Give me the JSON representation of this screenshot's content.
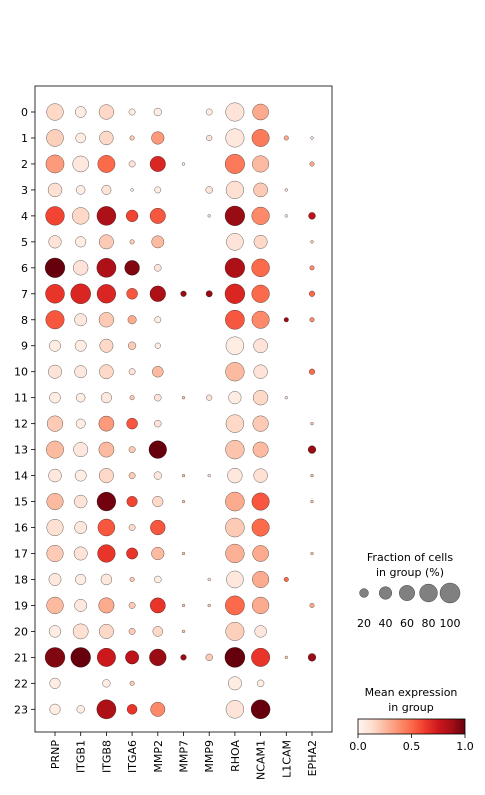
{
  "chart_data": {
    "type": "dotplot",
    "genes": [
      "PRNP",
      "ITGB1",
      "ITGB8",
      "ITGA6",
      "MMP2",
      "MMP7",
      "MMP9",
      "RHOA",
      "NCAM1",
      "L1CAM",
      "EPHA2"
    ],
    "groups": [
      "0",
      "1",
      "2",
      "3",
      "4",
      "5",
      "6",
      "7",
      "8",
      "9",
      "10",
      "11",
      "12",
      "13",
      "14",
      "15",
      "16",
      "17",
      "18",
      "19",
      "20",
      "21",
      "22",
      "23"
    ],
    "fraction": [
      [
        70,
        30,
        55,
        10,
        15,
        0,
        10,
        85,
        65,
        0,
        0
      ],
      [
        72,
        25,
        48,
        5,
        40,
        0,
        8,
        85,
        75,
        5,
        2
      ],
      [
        82,
        65,
        75,
        10,
        60,
        2,
        0,
        95,
        68,
        0,
        5
      ],
      [
        48,
        20,
        22,
        2,
        10,
        0,
        12,
        78,
        50,
        2,
        0
      ],
      [
        88,
        70,
        90,
        35,
        60,
        0,
        2,
        97,
        78,
        2,
        12
      ],
      [
        40,
        28,
        52,
        5,
        38,
        0,
        0,
        72,
        45,
        0,
        2
      ],
      [
        97,
        55,
        92,
        55,
        12,
        0,
        0,
        97,
        80,
        0,
        5
      ],
      [
        90,
        100,
        88,
        30,
        62,
        8,
        10,
        98,
        78,
        0,
        8
      ],
      [
        85,
        38,
        55,
        18,
        10,
        0,
        0,
        92,
        76,
        5,
        5
      ],
      [
        32,
        32,
        45,
        15,
        8,
        0,
        0,
        80,
        50,
        0,
        0
      ],
      [
        45,
        38,
        50,
        10,
        30,
        0,
        0,
        88,
        48,
        0,
        8
      ],
      [
        30,
        20,
        28,
        5,
        12,
        2,
        8,
        40,
        55,
        2,
        0
      ],
      [
        62,
        22,
        58,
        30,
        12,
        0,
        0,
        80,
        62,
        0,
        2
      ],
      [
        75,
        52,
        58,
        10,
        78,
        0,
        0,
        88,
        60,
        0,
        15
      ],
      [
        42,
        32,
        52,
        10,
        15,
        2,
        2,
        55,
        48,
        0,
        2
      ],
      [
        68,
        42,
        88,
        28,
        28,
        2,
        0,
        90,
        76,
        0,
        2
      ],
      [
        68,
        38,
        72,
        10,
        55,
        0,
        0,
        90,
        76,
        0,
        0
      ],
      [
        68,
        45,
        78,
        32,
        40,
        2,
        0,
        88,
        65,
        0,
        2
      ],
      [
        38,
        28,
        30,
        5,
        12,
        0,
        2,
        72,
        68,
        5,
        0
      ],
      [
        70,
        38,
        60,
        10,
        58,
        2,
        2,
        92,
        70,
        0,
        5
      ],
      [
        35,
        58,
        52,
        10,
        25,
        2,
        0,
        85,
        35,
        0,
        0
      ],
      [
        98,
        98,
        85,
        45,
        70,
        8,
        12,
        100,
        85,
        2,
        15
      ],
      [
        28,
        0,
        15,
        5,
        0,
        0,
        0,
        45,
        12,
        0,
        0
      ],
      [
        28,
        15,
        92,
        25,
        52,
        0,
        0,
        80,
        90,
        0,
        0
      ]
    ],
    "expression": [
      [
        0.15,
        0.05,
        0.15,
        0.05,
        0.05,
        0.0,
        0.05,
        0.1,
        0.3,
        0.0,
        0.0
      ],
      [
        0.18,
        0.05,
        0.15,
        0.2,
        0.35,
        0.0,
        0.1,
        0.08,
        0.45,
        0.3,
        0.1
      ],
      [
        0.35,
        0.08,
        0.5,
        0.1,
        0.7,
        0.05,
        0.0,
        0.45,
        0.25,
        0.0,
        0.3
      ],
      [
        0.12,
        0.04,
        0.1,
        0.05,
        0.05,
        0.0,
        0.1,
        0.12,
        0.2,
        0.1,
        0.0
      ],
      [
        0.6,
        0.15,
        0.85,
        0.6,
        0.55,
        0.0,
        0.1,
        0.9,
        0.4,
        0.1,
        0.8
      ],
      [
        0.1,
        0.05,
        0.2,
        0.2,
        0.25,
        0.0,
        0.0,
        0.1,
        0.15,
        0.0,
        0.2
      ],
      [
        1.0,
        0.1,
        0.85,
        0.95,
        0.1,
        0.0,
        0.0,
        0.85,
        0.5,
        0.0,
        0.4
      ],
      [
        0.65,
        0.7,
        0.7,
        0.55,
        0.85,
        0.9,
        0.9,
        0.7,
        0.5,
        0.0,
        0.5
      ],
      [
        0.55,
        0.08,
        0.2,
        0.3,
        0.05,
        0.0,
        0.0,
        0.55,
        0.4,
        0.9,
        0.4
      ],
      [
        0.05,
        0.05,
        0.15,
        0.2,
        0.05,
        0.0,
        0.0,
        0.05,
        0.1,
        0.0,
        0.0
      ],
      [
        0.1,
        0.08,
        0.15,
        0.1,
        0.25,
        0.0,
        0.0,
        0.25,
        0.1,
        0.0,
        0.5
      ],
      [
        0.05,
        0.05,
        0.08,
        0.2,
        0.1,
        0.2,
        0.1,
        0.05,
        0.15,
        0.1,
        0.0
      ],
      [
        0.2,
        0.05,
        0.35,
        0.55,
        0.1,
        0.0,
        0.0,
        0.15,
        0.2,
        0.0,
        0.2
      ],
      [
        0.25,
        0.08,
        0.25,
        0.2,
        1.0,
        0.0,
        0.0,
        0.22,
        0.25,
        0.0,
        0.9
      ],
      [
        0.08,
        0.05,
        0.15,
        0.2,
        0.08,
        0.2,
        0.1,
        0.08,
        0.12,
        0.0,
        0.2
      ],
      [
        0.25,
        0.1,
        0.98,
        0.6,
        0.15,
        0.2,
        0.0,
        0.3,
        0.55,
        0.0,
        0.2
      ],
      [
        0.12,
        0.08,
        0.55,
        0.15,
        0.55,
        0.0,
        0.0,
        0.2,
        0.5,
        0.0,
        0.0
      ],
      [
        0.2,
        0.1,
        0.65,
        0.65,
        0.25,
        0.2,
        0.0,
        0.28,
        0.3,
        0.0,
        0.2
      ],
      [
        0.08,
        0.05,
        0.08,
        0.2,
        0.05,
        0.0,
        0.1,
        0.08,
        0.3,
        0.5,
        0.0
      ],
      [
        0.25,
        0.08,
        0.3,
        0.2,
        0.65,
        0.2,
        0.2,
        0.5,
        0.3,
        0.0,
        0.3
      ],
      [
        0.05,
        0.12,
        0.15,
        0.2,
        0.15,
        0.2,
        0.0,
        0.18,
        0.08,
        0.0,
        0.0
      ],
      [
        0.95,
        1.0,
        0.75,
        0.8,
        0.9,
        0.9,
        0.2,
        1.0,
        0.65,
        0.2,
        0.9
      ],
      [
        0.05,
        0.0,
        0.05,
        0.2,
        0.0,
        0.0,
        0.0,
        0.05,
        0.05,
        0.0,
        0.0
      ],
      [
        0.05,
        0.05,
        0.85,
        0.65,
        0.4,
        0.0,
        0.0,
        0.1,
        1.0,
        0.0,
        0.0
      ]
    ],
    "size_legend": {
      "title_line1": "Fraction of cells",
      "title_line2": "in group (%)",
      "values": [
        "20",
        "40",
        "60",
        "80",
        "100"
      ]
    },
    "color_legend": {
      "title_line1": "Mean expression",
      "title_line2": "in group",
      "ticks": [
        "0.0",
        "0.5",
        "1.0"
      ]
    },
    "colormap": "Reds",
    "colors": {
      "low": "#fff5f0",
      "mid": "#ef3b2c",
      "high": "#67000d"
    }
  }
}
